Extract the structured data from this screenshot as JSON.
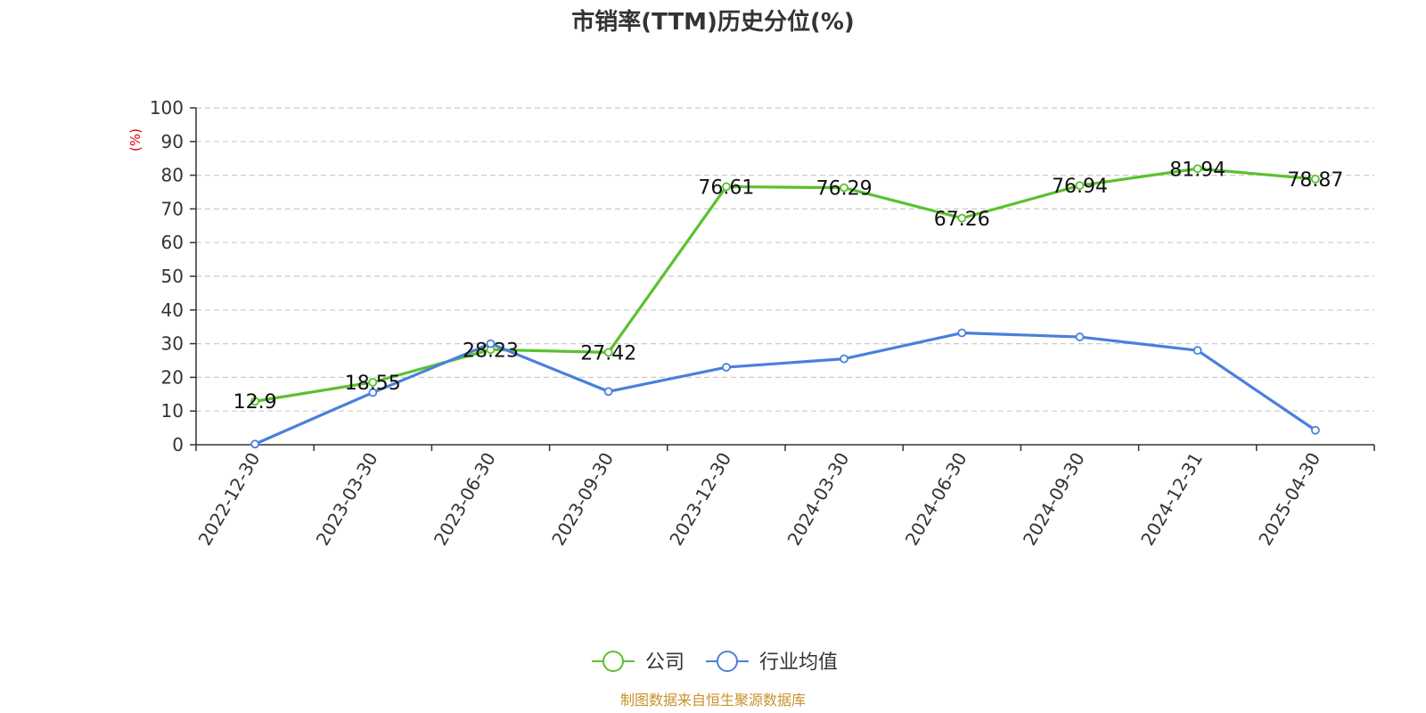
{
  "chart_data": {
    "type": "line",
    "title": "市销率(TTM)历史分位(%)",
    "ylabel": "(%)",
    "ylim": [
      0,
      100
    ],
    "yticks": [
      0,
      10,
      20,
      30,
      40,
      50,
      60,
      70,
      80,
      90,
      100
    ],
    "grid": true,
    "legend_position": "bottom-center",
    "categories": [
      "2022-12-30",
      "2023-03-30",
      "2023-06-30",
      "2023-09-30",
      "2023-12-30",
      "2024-03-30",
      "2024-06-30",
      "2024-09-30",
      "2024-12-31",
      "2025-04-30"
    ],
    "series": [
      {
        "name": "公司",
        "color": "#5ac12f",
        "values": [
          12.9,
          18.55,
          28.23,
          27.42,
          76.61,
          76.29,
          67.26,
          76.94,
          81.94,
          78.87
        ],
        "labels": [
          "12.9",
          "18.55",
          "28.23",
          "27.42",
          "76.61",
          "76.29",
          "67.26",
          "76.94",
          "81.94",
          "78.87"
        ]
      },
      {
        "name": "行业均值",
        "color": "#4a80dc",
        "values": [
          0.2,
          15.5,
          30.0,
          15.8,
          23.0,
          25.5,
          33.2,
          32.0,
          28.0,
          4.3
        ]
      }
    ]
  },
  "source": "制图数据来自恒生聚源数据库"
}
